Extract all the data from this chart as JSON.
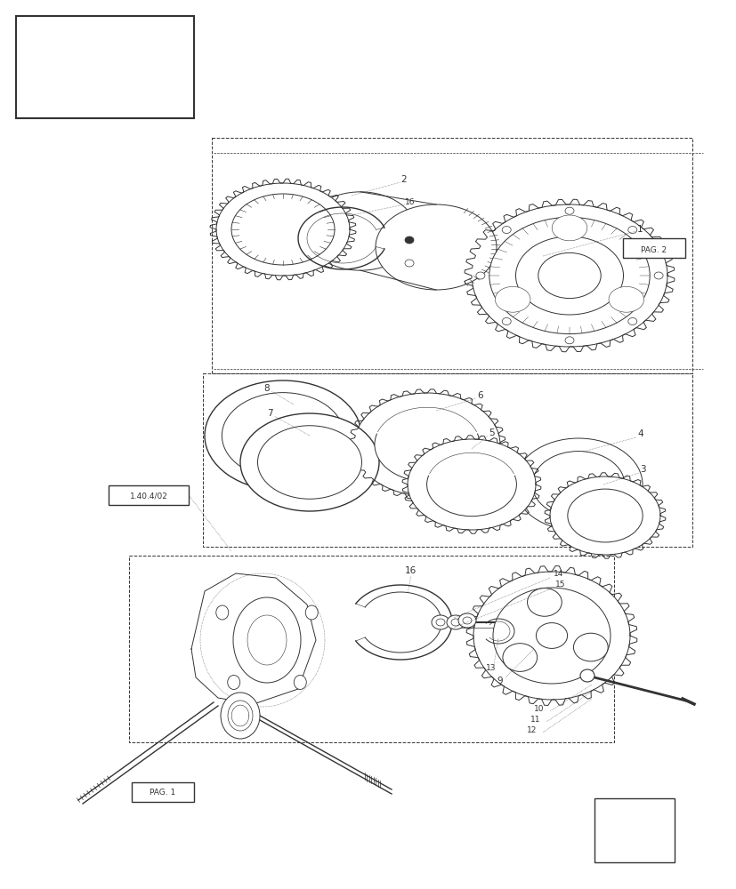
{
  "bg_color": "#ffffff",
  "line_color": "#333333",
  "page_width": 8.28,
  "page_height": 10.0,
  "dpi": 100,
  "ref_text": "1.40.4/02",
  "pag1_text": "PAG. 1",
  "pag2_text": "PAG. 2",
  "label_fs": 7.5,
  "annot_fs": 6.5
}
